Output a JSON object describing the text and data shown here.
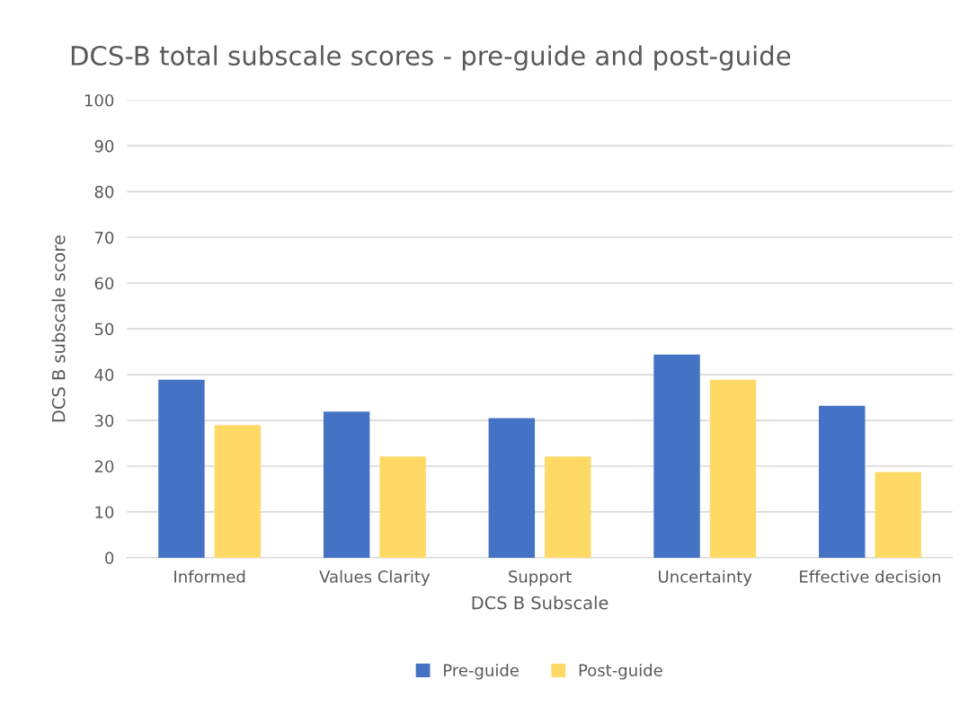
{
  "chart_data": {
    "type": "bar",
    "title": "DCS-B total subscale scores - pre-guide and post-guide",
    "xlabel": "DCS B Subscale",
    "ylabel": "DCS B subscale score",
    "categories": [
      "Informed",
      "Values Clarity",
      "Support",
      "Uncertainty",
      "Effective decision"
    ],
    "series": [
      {
        "name": "Pre-guide",
        "color": "#4472c4",
        "values": [
          38.9,
          31.9,
          30.5,
          44.4,
          33.2
        ]
      },
      {
        "name": "Post-guide",
        "color": "#ffd966",
        "values": [
          29.0,
          22.1,
          22.1,
          38.9,
          18.7
        ]
      }
    ],
    "ylim": [
      0,
      100
    ],
    "yticks": [
      0,
      10,
      20,
      30,
      40,
      50,
      60,
      70,
      80,
      90,
      100
    ],
    "grid": "y",
    "legend": "bottom"
  }
}
